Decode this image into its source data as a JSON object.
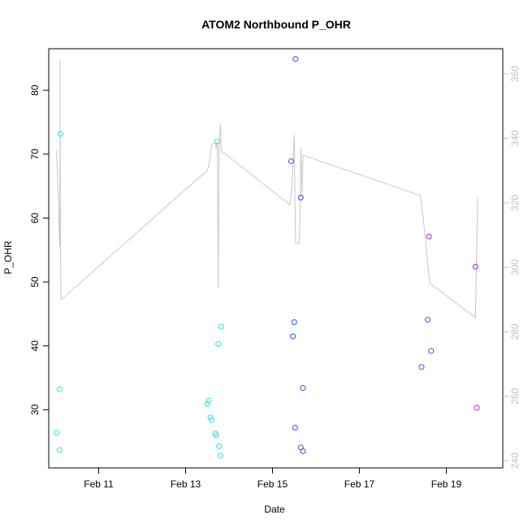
{
  "chart_data": {
    "type": "scatter",
    "title": "ATOM2 Northbound P_OHR",
    "xlabel": "Date",
    "ylabel": "P_OHR",
    "y2label": "",
    "x_tick_labels": [
      "Feb 11",
      "Feb 13",
      "Feb 15",
      "Feb 17",
      "Feb 19"
    ],
    "x_ticks_days": [
      11,
      13,
      15,
      17,
      19
    ],
    "xlim_days": [
      9.85,
      20.3
    ],
    "ylim": [
      20.9,
      86.5
    ],
    "y_ticks": [
      30,
      40,
      50,
      60,
      70,
      80
    ],
    "y2lim": [
      237.8,
      367.8
    ],
    "y2_ticks": [
      240,
      260,
      280,
      300,
      320,
      340,
      360
    ],
    "grid": false,
    "legend": "none",
    "colors": {
      "line": "#c8c8c8",
      "series_1": "#28e6e6",
      "series_2": "#2a50e0",
      "series_3": "#9a28e0"
    },
    "series": [
      {
        "color": "#28e6e6",
        "points": [
          {
            "x": 10.03,
            "y": 26.4
          },
          {
            "x": 10.1,
            "y": 23.7
          },
          {
            "x": 10.1,
            "y": 33.2
          },
          {
            "x": 10.12,
            "y": 73.2
          },
          {
            "x": 13.5,
            "y": 30.9
          },
          {
            "x": 13.53,
            "y": 31.4
          },
          {
            "x": 13.57,
            "y": 28.8
          },
          {
            "x": 13.6,
            "y": 28.4
          },
          {
            "x": 13.68,
            "y": 26.3
          },
          {
            "x": 13.7,
            "y": 26.0
          },
          {
            "x": 13.73,
            "y": 72.0
          },
          {
            "x": 13.75,
            "y": 40.3
          },
          {
            "x": 13.77,
            "y": 24.3
          },
          {
            "x": 13.8,
            "y": 22.8
          },
          {
            "x": 13.82,
            "y": 43.0
          }
        ]
      },
      {
        "color": "#2a50e0",
        "points": [
          {
            "x": 15.43,
            "y": 68.9
          },
          {
            "x": 15.47,
            "y": 41.5
          },
          {
            "x": 15.5,
            "y": 43.7
          },
          {
            "x": 15.52,
            "y": 27.2
          },
          {
            "x": 15.53,
            "y": 84.9
          },
          {
            "x": 15.65,
            "y": 63.2
          },
          {
            "x": 15.65,
            "y": 24.1
          },
          {
            "x": 15.7,
            "y": 33.4
          },
          {
            "x": 15.7,
            "y": 23.5
          }
        ]
      },
      {
        "color": "#9a28e0",
        "points": [
          {
            "x": 18.43,
            "y": 36.7
          },
          {
            "x": 18.57,
            "y": 44.1
          },
          {
            "x": 18.6,
            "y": 57.1
          },
          {
            "x": 18.65,
            "y": 39.2
          },
          {
            "x": 19.67,
            "y": 52.4
          },
          {
            "x": 19.7,
            "y": 30.3
          }
        ]
      }
    ],
    "line": {
      "axis": "right",
      "points": [
        {
          "x": 10.03,
          "y": 336.2
        },
        {
          "x": 10.08,
          "y": 318.2
        },
        {
          "x": 10.1,
          "y": 306.5
        },
        {
          "x": 10.11,
          "y": 338.0
        },
        {
          "x": 10.11,
          "y": 364.2
        },
        {
          "x": 10.12,
          "y": 310.3
        },
        {
          "x": 10.13,
          "y": 289.9
        },
        {
          "x": 13.5,
          "y": 330.1
        },
        {
          "x": 13.55,
          "y": 332.5
        },
        {
          "x": 13.6,
          "y": 338.2
        },
        {
          "x": 13.68,
          "y": 338.5
        },
        {
          "x": 13.7,
          "y": 336.9
        },
        {
          "x": 13.73,
          "y": 339.0
        },
        {
          "x": 13.75,
          "y": 293.5
        },
        {
          "x": 13.77,
          "y": 336.9
        },
        {
          "x": 13.8,
          "y": 344.6
        },
        {
          "x": 13.82,
          "y": 336.1
        },
        {
          "x": 15.4,
          "y": 319.4
        },
        {
          "x": 15.45,
          "y": 326.3
        },
        {
          "x": 15.5,
          "y": 341.1
        },
        {
          "x": 15.53,
          "y": 307.5
        },
        {
          "x": 15.62,
          "y": 307.5
        },
        {
          "x": 15.65,
          "y": 337.3
        },
        {
          "x": 15.68,
          "y": 322.3
        },
        {
          "x": 15.7,
          "y": 334.8
        },
        {
          "x": 18.4,
          "y": 322.3
        },
        {
          "x": 18.48,
          "y": 313.8
        },
        {
          "x": 18.55,
          "y": 304.5
        },
        {
          "x": 18.62,
          "y": 295.1
        },
        {
          "x": 19.67,
          "y": 284.4
        },
        {
          "x": 19.72,
          "y": 321.7
        }
      ]
    }
  }
}
